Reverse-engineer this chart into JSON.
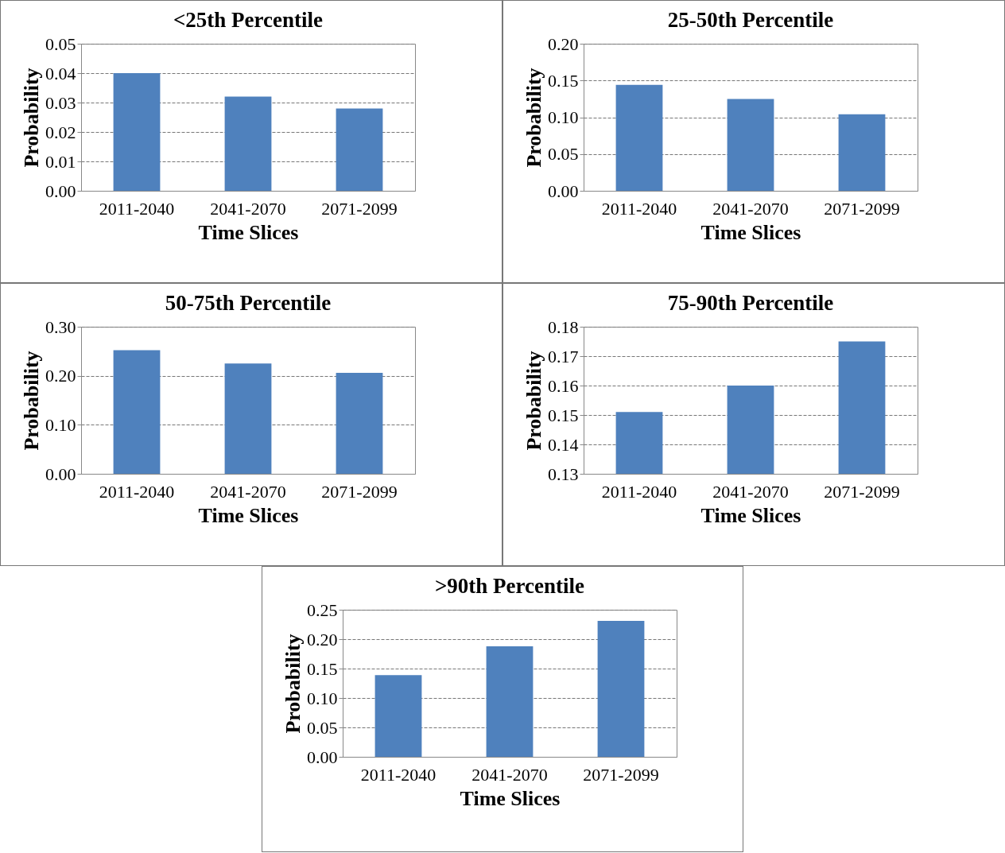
{
  "chart_data": [
    {
      "type": "bar",
      "title": "<25th Percentile",
      "xlabel": "Time Slices",
      "ylabel": "Probability",
      "categories": [
        "2011-2040",
        "2041-2070",
        "2071-2099"
      ],
      "values": [
        0.04,
        0.032,
        0.028
      ],
      "color": "#4f81bd",
      "ylim": [
        0,
        0.05
      ],
      "yticks": [
        {
          "value": 0,
          "label": "0.00"
        },
        {
          "value": 0.01,
          "label": "0.01"
        },
        {
          "value": 0.02,
          "label": "0.02"
        },
        {
          "value": 0.03,
          "label": "0.03"
        },
        {
          "value": 0.04,
          "label": "0.04"
        },
        {
          "value": 0.05,
          "label": "0.05"
        }
      ],
      "grid": "y"
    },
    {
      "type": "bar",
      "title": "25-50th Percentile",
      "xlabel": "Time Slices",
      "ylabel": "Probability",
      "categories": [
        "2011-2040",
        "2041-2070",
        "2071-2099"
      ],
      "values": [
        0.144,
        0.125,
        0.104
      ],
      "color": "#4f81bd",
      "ylim": [
        0,
        0.2
      ],
      "yticks": [
        {
          "value": 0,
          "label": "0.00"
        },
        {
          "value": 0.05,
          "label": "0.05"
        },
        {
          "value": 0.1,
          "label": "0.10"
        },
        {
          "value": 0.15,
          "label": "0.15"
        },
        {
          "value": 0.2,
          "label": "0.20"
        }
      ],
      "grid": "y"
    },
    {
      "type": "bar",
      "title": "50-75th Percentile",
      "xlabel": "Time Slices",
      "ylabel": "Probability",
      "categories": [
        "2011-2040",
        "2041-2070",
        "2071-2099"
      ],
      "values": [
        0.252,
        0.225,
        0.206
      ],
      "color": "#4f81bd",
      "ylim": [
        0,
        0.3
      ],
      "yticks": [
        {
          "value": 0,
          "label": "0.00"
        },
        {
          "value": 0.1,
          "label": "0.10"
        },
        {
          "value": 0.2,
          "label": "0.20"
        },
        {
          "value": 0.3,
          "label": "0.30"
        }
      ],
      "grid": "y"
    },
    {
      "type": "bar",
      "title": "75-90th Percentile",
      "xlabel": "Time Slices",
      "ylabel": "Probability",
      "categories": [
        "2011-2040",
        "2041-2070",
        "2071-2099"
      ],
      "values": [
        0.151,
        0.16,
        0.175
      ],
      "color": "#4f81bd",
      "ylim": [
        0.13,
        0.18
      ],
      "yticks": [
        {
          "value": 0.13,
          "label": "0.13"
        },
        {
          "value": 0.14,
          "label": "0.14"
        },
        {
          "value": 0.15,
          "label": "0.15"
        },
        {
          "value": 0.16,
          "label": "0.16"
        },
        {
          "value": 0.17,
          "label": "0.17"
        },
        {
          "value": 0.18,
          "label": "0.18"
        }
      ],
      "grid": "y"
    },
    {
      "type": "bar",
      "title": ">90th Percentile",
      "xlabel": "Time Slices",
      "ylabel": "Probability",
      "categories": [
        "2011-2040",
        "2041-2070",
        "2071-2099"
      ],
      "values": [
        0.139,
        0.188,
        0.231
      ],
      "color": "#4f81bd",
      "ylim": [
        0,
        0.25
      ],
      "yticks": [
        {
          "value": 0,
          "label": "0.00"
        },
        {
          "value": 0.05,
          "label": "0.05"
        },
        {
          "value": 0.1,
          "label": "0.10"
        },
        {
          "value": 0.15,
          "label": "0.15"
        },
        {
          "value": 0.2,
          "label": "0.20"
        },
        {
          "value": 0.25,
          "label": "0.25"
        }
      ],
      "grid": "y"
    }
  ]
}
